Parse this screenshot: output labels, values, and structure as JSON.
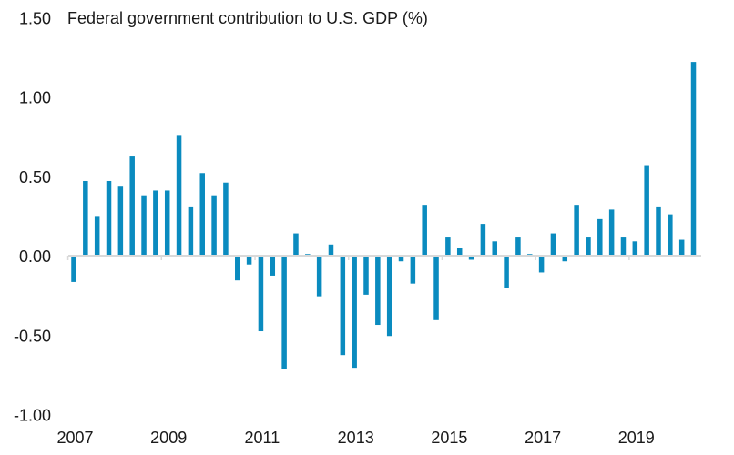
{
  "chart_data": {
    "type": "bar",
    "title": "Federal government contribution to U.S. GDP (%)",
    "xlabel": "",
    "ylabel": "",
    "ylim": [
      -1.0,
      1.5
    ],
    "yticks": [
      1.5,
      1.0,
      0.5,
      0.0,
      -0.5,
      -1.0
    ],
    "ytick_labels": [
      "1.50",
      "1.00",
      "0.50",
      "0.00",
      "-0.50",
      "-1.00"
    ],
    "xtick_labels": [
      "2007",
      "2009",
      "2011",
      "2013",
      "2015",
      "2017",
      "2019"
    ],
    "frequency": "quarterly",
    "start": "2007 Q1",
    "grid": false,
    "legend": "none",
    "bar_color": "#0a8bbf",
    "axis_color": "#d9d9d9",
    "categories": [
      "2007 Q1",
      "2007 Q2",
      "2007 Q3",
      "2007 Q4",
      "2008 Q1",
      "2008 Q2",
      "2008 Q3",
      "2008 Q4",
      "2009 Q1",
      "2009 Q2",
      "2009 Q3",
      "2009 Q4",
      "2010 Q1",
      "2010 Q2",
      "2010 Q3",
      "2010 Q4",
      "2011 Q1",
      "2011 Q2",
      "2011 Q3",
      "2011 Q4",
      "2012 Q1",
      "2012 Q2",
      "2012 Q3",
      "2012 Q4",
      "2013 Q1",
      "2013 Q2",
      "2013 Q3",
      "2013 Q4",
      "2014 Q1",
      "2014 Q2",
      "2014 Q3",
      "2014 Q4",
      "2015 Q1",
      "2015 Q2",
      "2015 Q3",
      "2015 Q4",
      "2016 Q1",
      "2016 Q2",
      "2016 Q3",
      "2016 Q4",
      "2017 Q1",
      "2017 Q2",
      "2017 Q3",
      "2017 Q4",
      "2018 Q1",
      "2018 Q2",
      "2018 Q3",
      "2018 Q4",
      "2019 Q1",
      "2019 Q2",
      "2019 Q3",
      "2019 Q4",
      "2020 Q1",
      "2020 Q2"
    ],
    "values": [
      -0.16,
      0.47,
      0.25,
      0.47,
      0.44,
      0.63,
      0.38,
      0.41,
      0.41,
      0.76,
      0.31,
      0.52,
      0.38,
      0.46,
      -0.15,
      -0.05,
      -0.47,
      -0.12,
      -0.71,
      0.14,
      0.01,
      -0.25,
      0.07,
      -0.62,
      -0.7,
      -0.24,
      -0.43,
      -0.5,
      -0.03,
      -0.17,
      0.32,
      -0.4,
      0.12,
      0.05,
      -0.02,
      0.2,
      0.09,
      -0.2,
      0.12,
      0.01,
      -0.1,
      0.14,
      -0.03,
      0.32,
      0.12,
      0.23,
      0.29,
      0.12,
      0.09,
      0.57,
      0.31,
      0.26,
      0.1,
      1.22
    ]
  }
}
